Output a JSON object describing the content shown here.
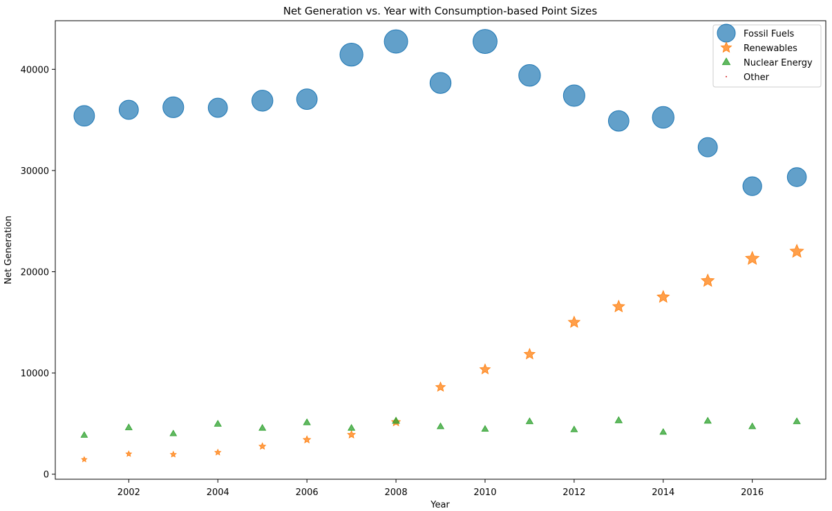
{
  "chart_data": {
    "type": "scatter",
    "title": "Net Generation vs. Year with Consumption-based Point Sizes",
    "xlabel": "Year",
    "ylabel": "Net Generation",
    "xlim": [
      2000.35,
      2017.65
    ],
    "ylim": [
      -500,
      44800
    ],
    "xticks": [
      2002,
      2004,
      2006,
      2008,
      2010,
      2012,
      2014,
      2016
    ],
    "yticks": [
      0,
      10000,
      20000,
      30000,
      40000
    ],
    "legend_position": "upper right",
    "grid": false,
    "x": [
      2001,
      2002,
      2003,
      2004,
      2005,
      2006,
      2007,
      2008,
      2009,
      2010,
      2011,
      2012,
      2013,
      2014,
      2015,
      2016,
      2017
    ],
    "series": [
      {
        "name": "Fossil Fuels",
        "marker": "circle",
        "color": "#1f77b4",
        "values": [
          35400,
          36000,
          36250,
          36200,
          36900,
          37050,
          41450,
          42750,
          38650,
          42750,
          39400,
          37400,
          34900,
          35250,
          32300,
          28450,
          29350
        ],
        "relative_size": [
          0.93,
          0.87,
          0.94,
          0.87,
          0.95,
          0.93,
          1.04,
          1.06,
          0.95,
          1.09,
          0.98,
          0.97,
          0.93,
          0.98,
          0.87,
          0.85,
          0.86
        ]
      },
      {
        "name": "Renewables",
        "marker": "star",
        "color": "#ff7f0e",
        "values": [
          1450,
          2000,
          1950,
          2150,
          2750,
          3400,
          3900,
          5150,
          8600,
          10350,
          11850,
          15000,
          16550,
          17500,
          19100,
          21300,
          22000
        ],
        "relative_size": [
          0.4,
          0.42,
          0.44,
          0.45,
          0.5,
          0.55,
          0.58,
          0.66,
          0.72,
          0.78,
          0.82,
          0.88,
          0.9,
          0.92,
          0.97,
          1.02,
          1.02
        ]
      },
      {
        "name": "Nuclear Energy",
        "marker": "triangle",
        "color": "#2ca02c",
        "values": [
          3850,
          4600,
          4000,
          4950,
          4550,
          5100,
          4550,
          5250,
          4700,
          4450,
          5200,
          4400,
          5300,
          4150,
          5250,
          4700,
          5200
        ],
        "relative_size": [
          0.5,
          0.52,
          0.5,
          0.53,
          0.52,
          0.53,
          0.52,
          0.55,
          0.52,
          0.51,
          0.53,
          0.51,
          0.54,
          0.5,
          0.53,
          0.52,
          0.53
        ]
      },
      {
        "name": "Other",
        "marker": "dot",
        "color": "#d62728",
        "values": [],
        "relative_size": []
      }
    ]
  }
}
